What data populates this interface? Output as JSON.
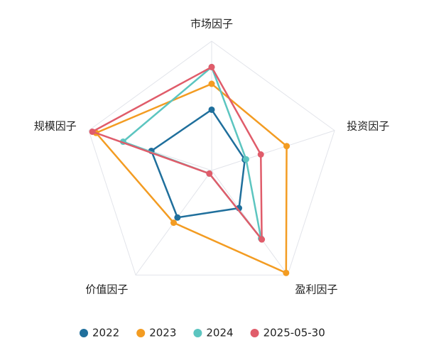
{
  "chart_data": {
    "type": "radar",
    "categories": [
      "市场因子",
      "投资因子",
      "盈利因子",
      "价值因子",
      "规模因子"
    ],
    "rlim": [
      0,
      1
    ],
    "rticks": [
      0.2,
      0.4,
      0.6,
      0.8,
      1
    ],
    "series": [
      {
        "name": "2022",
        "color": "#1f6f9c",
        "values": [
          0.47,
          0.27,
          0.36,
          0.45,
          0.49
        ]
      },
      {
        "name": "2023",
        "color": "#f39c22",
        "values": [
          0.67,
          0.61,
          0.98,
          0.5,
          0.94
        ]
      },
      {
        "name": "2024",
        "color": "#5cc5c0",
        "values": [
          0.8,
          0.28,
          0.65,
          0.03,
          0.72
        ]
      },
      {
        "name": "2025-05-30",
        "color": "#e05c6a",
        "values": [
          0.8,
          0.4,
          0.66,
          0.03,
          0.97
        ]
      }
    ]
  }
}
